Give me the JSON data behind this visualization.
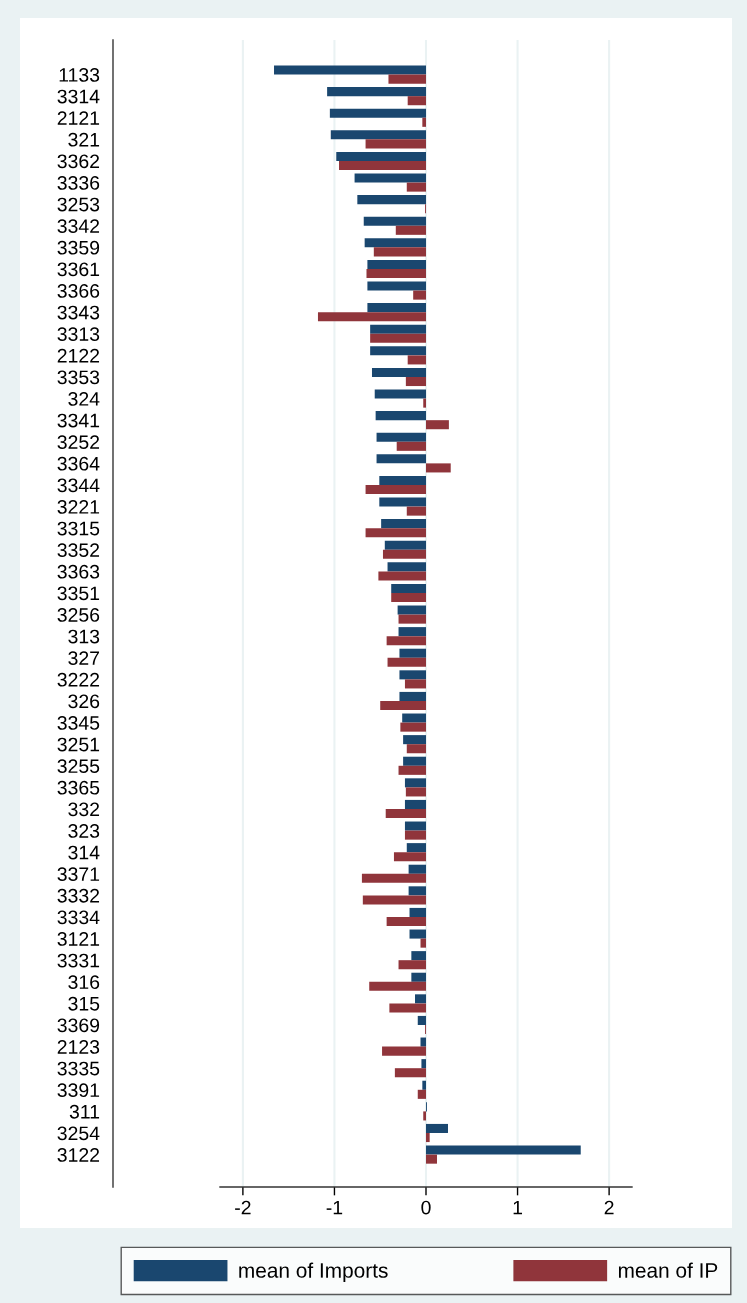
{
  "chart_data": {
    "type": "bar",
    "orientation": "horizontal",
    "categories": [
      "1133",
      "3314",
      "2121",
      "321",
      "3362",
      "3336",
      "3253",
      "3342",
      "3359",
      "3361",
      "3366",
      "3343",
      "3313",
      "2122",
      "3353",
      "324",
      "3341",
      "3252",
      "3364",
      "3344",
      "3221",
      "3315",
      "3352",
      "3363",
      "3351",
      "3256",
      "313",
      "327",
      "3222",
      "326",
      "3345",
      "3251",
      "3255",
      "3365",
      "332",
      "323",
      "314",
      "3371",
      "3332",
      "3334",
      "3121",
      "3331",
      "316",
      "315",
      "3369",
      "2123",
      "3335",
      "3391",
      "311",
      "3254",
      "3122"
    ],
    "series": [
      {
        "name": "mean of Imports",
        "color": "#1a476f",
        "values": [
          -1.66,
          -1.08,
          -1.05,
          -1.04,
          -0.98,
          -0.78,
          -0.75,
          -0.68,
          -0.67,
          -0.64,
          -0.64,
          -0.64,
          -0.61,
          -0.61,
          -0.59,
          -0.56,
          -0.55,
          -0.54,
          -0.54,
          -0.51,
          -0.51,
          -0.49,
          -0.45,
          -0.42,
          -0.38,
          -0.31,
          -0.3,
          -0.29,
          -0.29,
          -0.29,
          -0.26,
          -0.25,
          -0.25,
          -0.23,
          -0.23,
          -0.23,
          -0.21,
          -0.19,
          -0.19,
          -0.18,
          -0.18,
          -0.16,
          -0.16,
          -0.12,
          -0.09,
          -0.06,
          -0.05,
          -0.04,
          0.01,
          0.24,
          1.69
        ]
      },
      {
        "name": "mean of IP",
        "color": "#90353b",
        "values": [
          -0.41,
          -0.2,
          -0.04,
          -0.66,
          -0.95,
          -0.21,
          -0.01,
          -0.33,
          -0.57,
          -0.65,
          -0.14,
          -1.18,
          -0.61,
          -0.2,
          -0.22,
          -0.03,
          0.25,
          -0.32,
          0.27,
          -0.66,
          -0.21,
          -0.66,
          -0.47,
          -0.52,
          -0.38,
          -0.3,
          -0.43,
          -0.42,
          -0.23,
          -0.5,
          -0.28,
          -0.21,
          -0.3,
          -0.22,
          -0.44,
          -0.23,
          -0.35,
          -0.7,
          -0.69,
          -0.43,
          -0.06,
          -0.3,
          -0.62,
          -0.4,
          -0.01,
          -0.48,
          -0.34,
          -0.09,
          -0.03,
          0.04,
          0.12
        ]
      }
    ],
    "xlim": [
      -2.25,
      2.25
    ],
    "xticks": [
      -2,
      -1,
      0,
      1,
      2
    ],
    "grid": "x",
    "legend": "bottom"
  }
}
